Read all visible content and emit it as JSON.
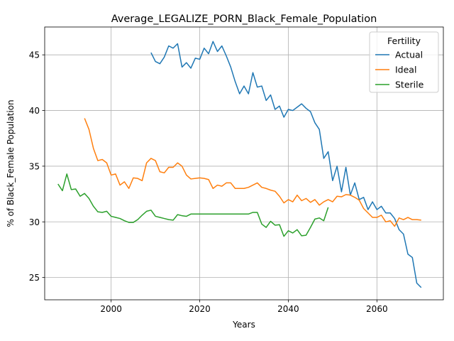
{
  "chart_data": {
    "type": "line",
    "title": "Average_LEGALIZE_PORN_Black_Female_Population",
    "xlabel": "Years",
    "ylabel": "% of Black_Female Population",
    "xlim": [
      1985,
      2075
    ],
    "ylim": [
      23,
      47.5
    ],
    "xticks": [
      2000,
      2020,
      2040,
      2060
    ],
    "yticks": [
      25,
      30,
      35,
      40,
      45
    ],
    "grid": true,
    "legend": {
      "title": "Fertility",
      "location": "top-right"
    },
    "series": [
      {
        "name": "Actual",
        "color": "#1f77b4",
        "x": [
          2009,
          2010,
          2011,
          2012,
          2013,
          2014,
          2015,
          2016,
          2017,
          2018,
          2019,
          2020,
          2021,
          2022,
          2023,
          2024,
          2025,
          2026,
          2027,
          2028,
          2029,
          2030,
          2031,
          2032,
          2033,
          2034,
          2035,
          2036,
          2037,
          2038,
          2039,
          2040,
          2041,
          2042,
          2043,
          2044,
          2045,
          2046,
          2047,
          2048,
          2049,
          2050,
          2051,
          2052,
          2053,
          2054,
          2055,
          2056,
          2057,
          2058,
          2059,
          2060,
          2061,
          2062,
          2063,
          2064,
          2065,
          2066,
          2067,
          2068,
          2069,
          2070
        ],
        "y": [
          45.2,
          44.4,
          44.2,
          44.8,
          45.8,
          45.6,
          46.0,
          43.9,
          44.3,
          43.8,
          44.7,
          44.6,
          45.6,
          45.1,
          46.2,
          45.3,
          45.8,
          44.9,
          43.9,
          42.6,
          41.5,
          42.2,
          41.5,
          43.4,
          42.1,
          42.2,
          40.9,
          41.4,
          40.1,
          40.4,
          39.4,
          40.1,
          40.0,
          40.3,
          40.6,
          40.2,
          39.9,
          38.9,
          38.3,
          35.7,
          36.3,
          33.7,
          35.0,
          32.7,
          34.9,
          32.4,
          33.5,
          32.0,
          32.2,
          31.1,
          31.8,
          31.1,
          31.4,
          30.8,
          30.8,
          30.3,
          29.3,
          28.9,
          27.1,
          26.8,
          24.5,
          24.1
        ]
      },
      {
        "name": "Ideal",
        "color": "#ff7f0e",
        "x": [
          1994,
          1995,
          1996,
          1997,
          1998,
          1999,
          2000,
          2001,
          2002,
          2003,
          2004,
          2005,
          2006,
          2007,
          2008,
          2009,
          2010,
          2011,
          2012,
          2013,
          2014,
          2015,
          2016,
          2017,
          2018,
          2019,
          2020,
          2021,
          2022,
          2023,
          2024,
          2025,
          2026,
          2027,
          2028,
          2029,
          2030,
          2031,
          2032,
          2033,
          2034,
          2035,
          2036,
          2037,
          2038,
          2039,
          2040,
          2041,
          2042,
          2043,
          2044,
          2045,
          2046,
          2047,
          2048,
          2049,
          2050,
          2051,
          2052,
          2053,
          2054,
          2055,
          2056,
          2057,
          2058,
          2059,
          2060,
          2061,
          2062,
          2063,
          2064,
          2065,
          2066,
          2067,
          2068,
          2069,
          2070
        ],
        "y": [
          39.3,
          38.3,
          36.6,
          35.5,
          35.6,
          35.3,
          34.2,
          34.3,
          33.3,
          33.6,
          33.0,
          33.95,
          33.9,
          33.7,
          35.3,
          35.7,
          35.5,
          34.5,
          34.4,
          34.9,
          34.9,
          35.3,
          35.0,
          34.2,
          33.85,
          33.9,
          33.95,
          33.9,
          33.8,
          33.0,
          33.3,
          33.2,
          33.5,
          33.5,
          33.0,
          33.0,
          33.0,
          33.1,
          33.3,
          33.5,
          33.1,
          33.0,
          32.85,
          32.75,
          32.3,
          31.7,
          32.0,
          31.8,
          32.4,
          31.9,
          32.1,
          31.75,
          32.0,
          31.5,
          31.8,
          32.0,
          31.8,
          32.3,
          32.25,
          32.45,
          32.4,
          32.2,
          31.95,
          31.2,
          30.8,
          30.4,
          30.4,
          30.6,
          30.0,
          30.1,
          29.6,
          30.35,
          30.2,
          30.4,
          30.2,
          30.2,
          30.15
        ]
      },
      {
        "name": "Sterile",
        "color": "#2ca02c",
        "x": [
          1988,
          1989,
          1990,
          1991,
          1992,
          1993,
          1994,
          1995,
          1996,
          1997,
          1998,
          1999,
          2000,
          2001,
          2002,
          2003,
          2004,
          2005,
          2006,
          2007,
          2008,
          2009,
          2010,
          2011,
          2012,
          2013,
          2014,
          2015,
          2016,
          2017,
          2018,
          2019,
          2020,
          2021,
          2022,
          2023,
          2024,
          2025,
          2026,
          2027,
          2028,
          2029,
          2030,
          2031,
          2032,
          2033,
          2034,
          2035,
          2036,
          2037,
          2038,
          2039,
          2040,
          2041,
          2042,
          2043,
          2044,
          2045,
          2046,
          2047,
          2048,
          2049
        ],
        "y": [
          33.4,
          32.8,
          34.3,
          32.9,
          32.95,
          32.3,
          32.55,
          32.1,
          31.4,
          30.9,
          30.85,
          30.95,
          30.5,
          30.4,
          30.3,
          30.1,
          29.95,
          29.95,
          30.2,
          30.6,
          30.95,
          31.05,
          30.5,
          30.4,
          30.3,
          30.2,
          30.15,
          30.65,
          30.55,
          30.5,
          30.7,
          30.7,
          30.7,
          30.7,
          30.7,
          30.7,
          30.7,
          30.7,
          30.7,
          30.7,
          30.7,
          30.7,
          30.7,
          30.7,
          30.85,
          30.85,
          29.8,
          29.5,
          30.05,
          29.7,
          29.75,
          28.7,
          29.2,
          29.0,
          29.3,
          28.75,
          28.8,
          29.5,
          30.25,
          30.35,
          30.1,
          31.3
        ]
      }
    ]
  }
}
